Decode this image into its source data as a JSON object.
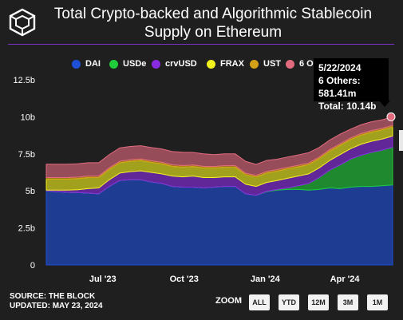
{
  "header": {
    "title_line1": "Total Crypto-backed and Algorithmic Stablecoin",
    "title_line2": "Supply on Ethereum",
    "logo_icon": "the-block-cube-icon"
  },
  "tooltip": {
    "date": "5/22/2024",
    "line": "6 Others: 581.41m",
    "total": "Total: 10.14b"
  },
  "footer": {
    "source": "SOURCE: THE BLOCK",
    "updated": "UPDATED: MAY 23, 2024",
    "zoom_label": "ZOOM",
    "zoom_buttons": [
      "ALL",
      "YTD",
      "12M",
      "3M",
      "1M"
    ]
  },
  "chart_data": {
    "type": "area",
    "stacked": true,
    "x_tick_labels": [
      "Jul '23",
      "Oct '23",
      "Jan '24",
      "Apr '24"
    ],
    "y_tick_labels": [
      "0",
      "2.5b",
      "5b",
      "7.5b",
      "10b",
      "12.5b"
    ],
    "ylim": [
      0,
      12.5
    ],
    "legend_position": "top",
    "grid": false,
    "series": [
      {
        "name": "DAI",
        "color": "#1e4fd8",
        "values": [
          5.0,
          4.95,
          4.9,
          4.88,
          4.85,
          4.8,
          5.3,
          5.7,
          5.75,
          5.75,
          5.6,
          5.5,
          5.3,
          5.25,
          5.25,
          5.2,
          5.25,
          5.3,
          5.3,
          4.8,
          4.7,
          4.95,
          5.05,
          5.1,
          5.1,
          5.05,
          5.1,
          5.2,
          5.15,
          5.25,
          5.3,
          5.3,
          5.35,
          5.4
        ]
      },
      {
        "name": "USDe",
        "color": "#1fcc3a",
        "values": [
          0,
          0,
          0,
          0,
          0,
          0,
          0,
          0,
          0,
          0,
          0,
          0,
          0,
          0,
          0,
          0,
          0,
          0,
          0,
          0,
          0,
          0.02,
          0.05,
          0.1,
          0.25,
          0.45,
          0.8,
          1.2,
          1.6,
          1.9,
          2.1,
          2.3,
          2.4,
          2.55
        ]
      },
      {
        "name": "crvUSD",
        "color": "#8a2be2",
        "values": [
          0.05,
          0.1,
          0.15,
          0.2,
          0.3,
          0.4,
          0.45,
          0.5,
          0.55,
          0.6,
          0.65,
          0.65,
          0.7,
          0.7,
          0.75,
          0.7,
          0.65,
          0.65,
          0.65,
          0.65,
          0.6,
          0.6,
          0.6,
          0.65,
          0.65,
          0.65,
          0.65,
          0.65,
          0.7,
          0.7,
          0.75,
          0.75,
          0.75,
          0.75
        ]
      },
      {
        "name": "FRAX",
        "color": "#f2f21e",
        "values": [
          0.75,
          0.75,
          0.75,
          0.75,
          0.75,
          0.7,
          0.7,
          0.7,
          0.7,
          0.7,
          0.68,
          0.68,
          0.66,
          0.66,
          0.65,
          0.65,
          0.65,
          0.65,
          0.65,
          0.64,
          0.64,
          0.64,
          0.64,
          0.64,
          0.63,
          0.63,
          0.63,
          0.63,
          0.63,
          0.62,
          0.62,
          0.62,
          0.62,
          0.62
        ]
      },
      {
        "name": "UST",
        "color": "#d4a017",
        "values": [
          0.1,
          0.1,
          0.1,
          0.1,
          0.1,
          0.1,
          0.1,
          0.1,
          0.1,
          0.1,
          0.1,
          0.1,
          0.1,
          0.1,
          0.1,
          0.1,
          0.1,
          0.1,
          0.1,
          0.1,
          0.1,
          0.1,
          0.1,
          0.1,
          0.1,
          0.1,
          0.1,
          0.1,
          0.1,
          0.1,
          0.1,
          0.1,
          0.1,
          0.1
        ]
      },
      {
        "name": "6 Others",
        "color": "#e26b7e",
        "values": [
          0.9,
          0.9,
          0.9,
          0.9,
          0.9,
          0.9,
          0.9,
          0.9,
          0.9,
          0.9,
          0.9,
          0.9,
          0.9,
          0.9,
          0.85,
          0.85,
          0.8,
          0.8,
          0.8,
          0.8,
          0.75,
          0.75,
          0.7,
          0.7,
          0.7,
          0.7,
          0.65,
          0.65,
          0.65,
          0.6,
          0.6,
          0.6,
          0.58,
          0.58
        ]
      }
    ],
    "tooltip_point": {
      "date": "5/22/2024",
      "series": "6 Others",
      "value": "581.41m",
      "total": "10.14b"
    }
  }
}
